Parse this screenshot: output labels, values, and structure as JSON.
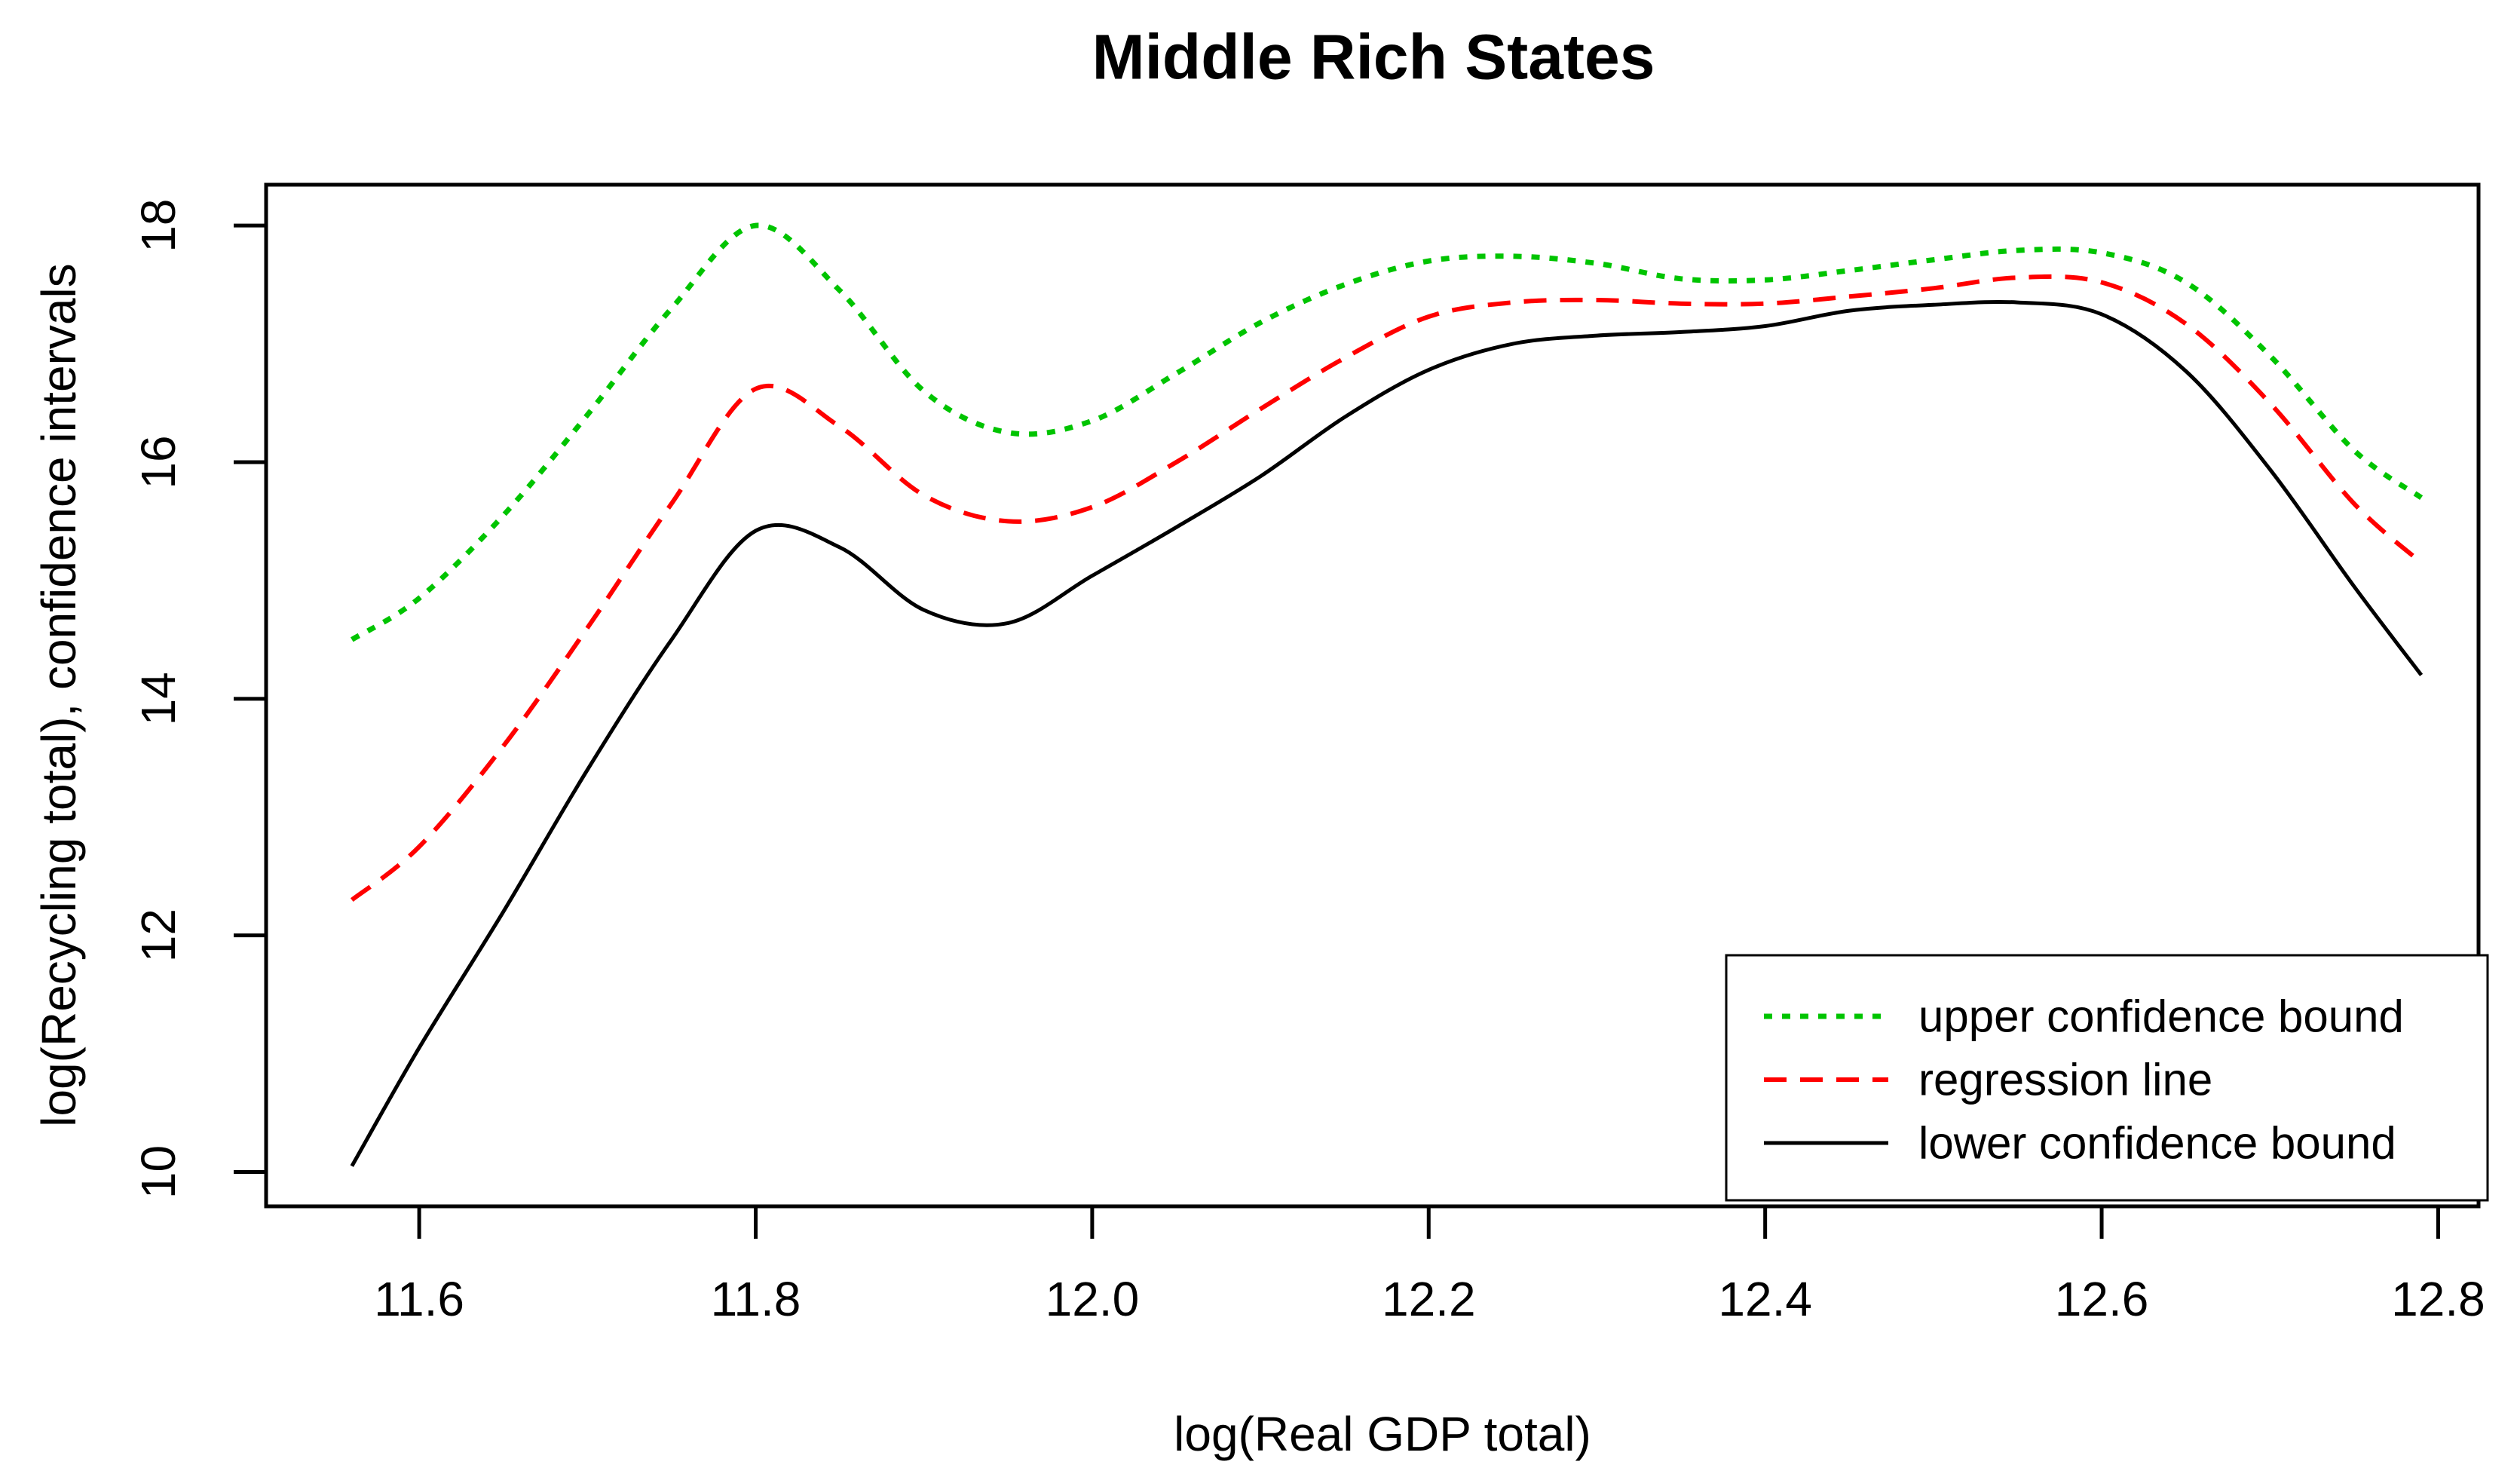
{
  "title": "Middle Rich States",
  "chart_data": {
    "type": "line",
    "title": "Middle Rich States",
    "xlabel": "log(Real GDP total)",
    "ylabel": "log(Recycling total), confidence intervals",
    "x_ticks": [
      11.6,
      11.8,
      12.0,
      12.2,
      12.4,
      12.6,
      12.8
    ],
    "x_tick_labels": [
      "11.6",
      "11.8",
      "12.0",
      "12.2",
      "12.4",
      "12.6",
      "12.8"
    ],
    "y_ticks": [
      10,
      12,
      14,
      16,
      18
    ],
    "y_tick_labels": [
      "10",
      "12",
      "14",
      "16",
      "18"
    ],
    "xlim": [
      11.509,
      12.824
    ],
    "ylim": [
      9.71,
      18.345
    ],
    "grid": false,
    "legend_position": "bottom-right",
    "x": [
      11.56,
      11.6,
      11.65,
      11.7,
      11.75,
      11.8,
      11.85,
      11.9,
      11.95,
      12.0,
      12.05,
      12.1,
      12.15,
      12.2,
      12.25,
      12.3,
      12.35,
      12.4,
      12.45,
      12.5,
      12.55,
      12.6,
      12.65,
      12.7,
      12.75,
      12.79
    ],
    "series": [
      {
        "name": "upper confidence bound",
        "color": "#00C400",
        "dash": "dotted",
        "values": [
          14.5,
          14.85,
          15.55,
          16.4,
          17.3,
          18.0,
          17.45,
          16.6,
          16.25,
          16.35,
          16.75,
          17.18,
          17.5,
          17.7,
          17.74,
          17.68,
          17.55,
          17.54,
          17.62,
          17.71,
          17.79,
          17.77,
          17.52,
          16.9,
          16.1,
          15.7
        ]
      },
      {
        "name": "regression line",
        "color": "#FF0000",
        "dash": "dashed",
        "values": [
          12.3,
          12.75,
          13.6,
          14.6,
          15.65,
          16.62,
          16.3,
          15.72,
          15.5,
          15.62,
          16.0,
          16.45,
          16.88,
          17.23,
          17.35,
          17.37,
          17.34,
          17.34,
          17.4,
          17.47,
          17.56,
          17.52,
          17.17,
          16.5,
          15.65,
          15.15
        ]
      },
      {
        "name": "lower confidence bound",
        "color": "#000000",
        "dash": "solid",
        "values": [
          10.05,
          11.05,
          12.2,
          13.4,
          14.5,
          15.42,
          15.28,
          14.75,
          14.64,
          15.04,
          15.45,
          15.88,
          16.38,
          16.78,
          17.0,
          17.07,
          17.1,
          17.15,
          17.28,
          17.33,
          17.35,
          17.25,
          16.77,
          15.94,
          14.95,
          14.2
        ]
      }
    ]
  }
}
